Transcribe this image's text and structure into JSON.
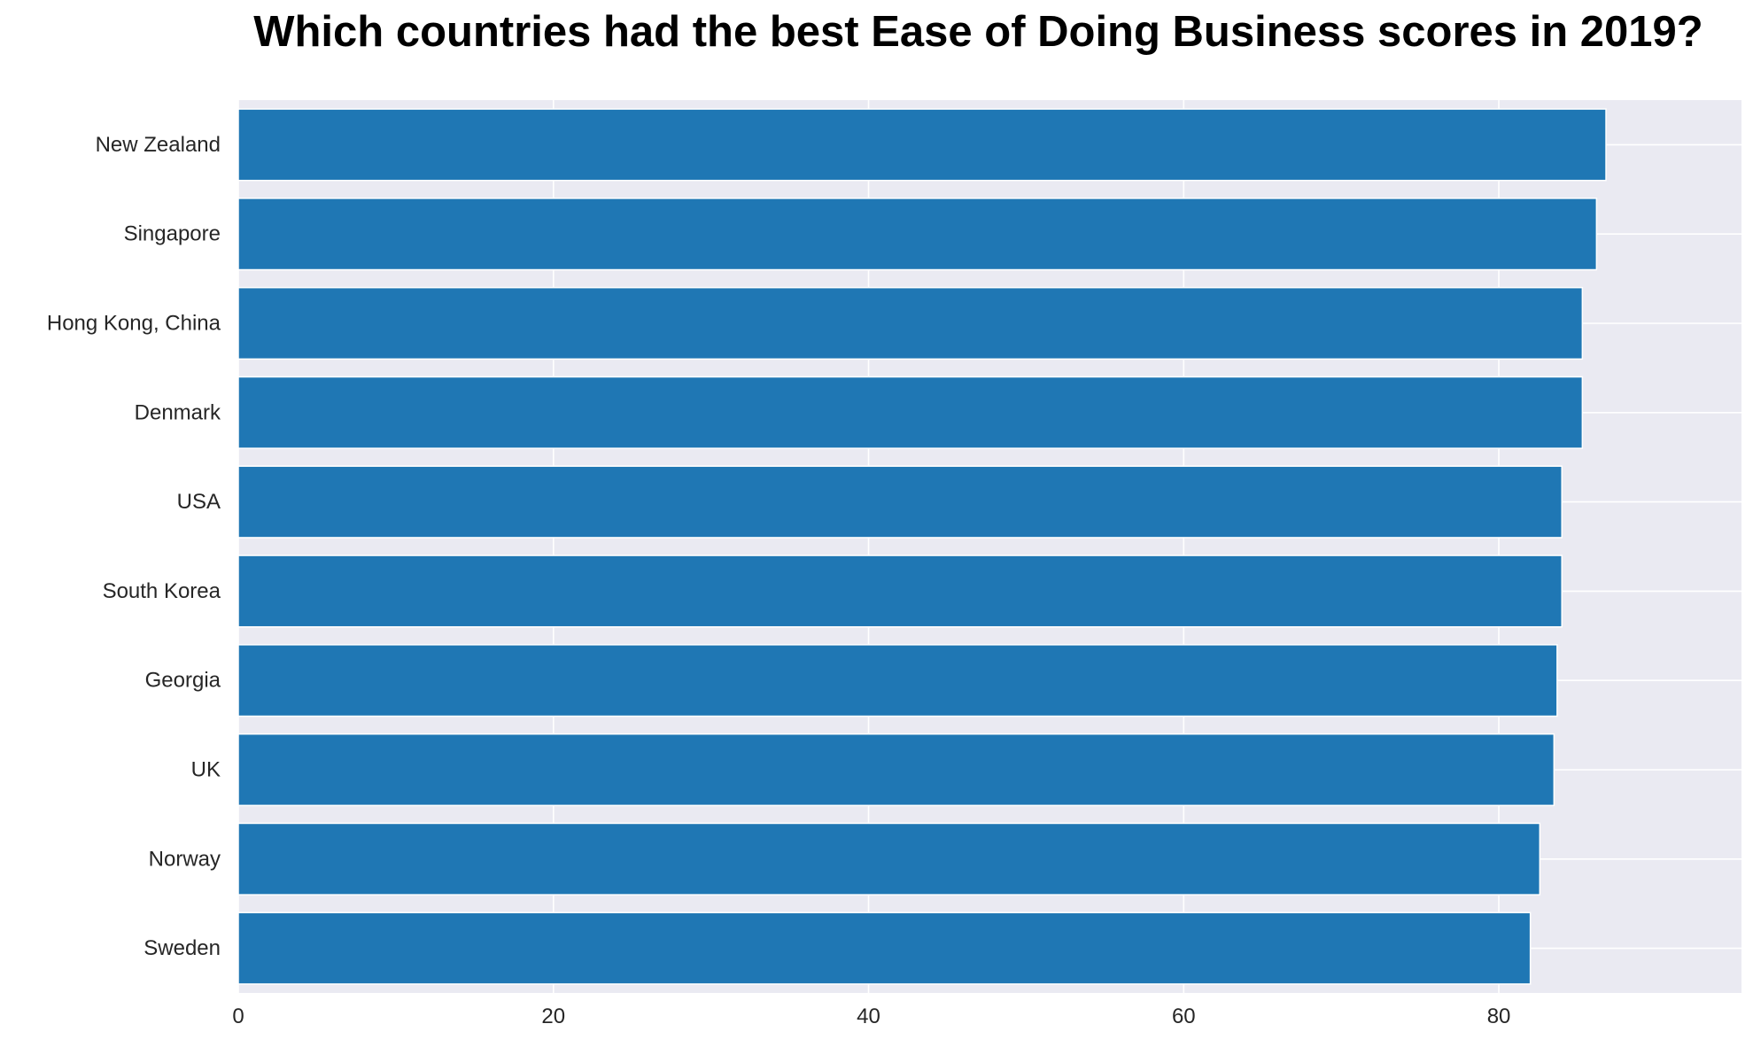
{
  "chart_data": {
    "type": "bar",
    "orientation": "horizontal",
    "title": "Which countries had the best Ease of Doing Business scores in 2019?",
    "xlabel": "",
    "ylabel": "",
    "categories": [
      "New Zealand",
      "Singapore",
      "Hong Kong, China",
      "Denmark",
      "USA",
      "South Korea",
      "Georgia",
      "UK",
      "Norway",
      "Sweden"
    ],
    "values": [
      86.8,
      86.2,
      85.3,
      85.3,
      84.0,
      84.0,
      83.7,
      83.5,
      82.6,
      82.0
    ],
    "xlim": [
      0,
      95.4
    ],
    "xticks": [
      "0",
      "20",
      "40",
      "60",
      "80"
    ],
    "grid": true,
    "colors": {
      "bar": "#1f77b4",
      "plot_background": "#eaeaf2",
      "grid": "#ffffff"
    }
  }
}
